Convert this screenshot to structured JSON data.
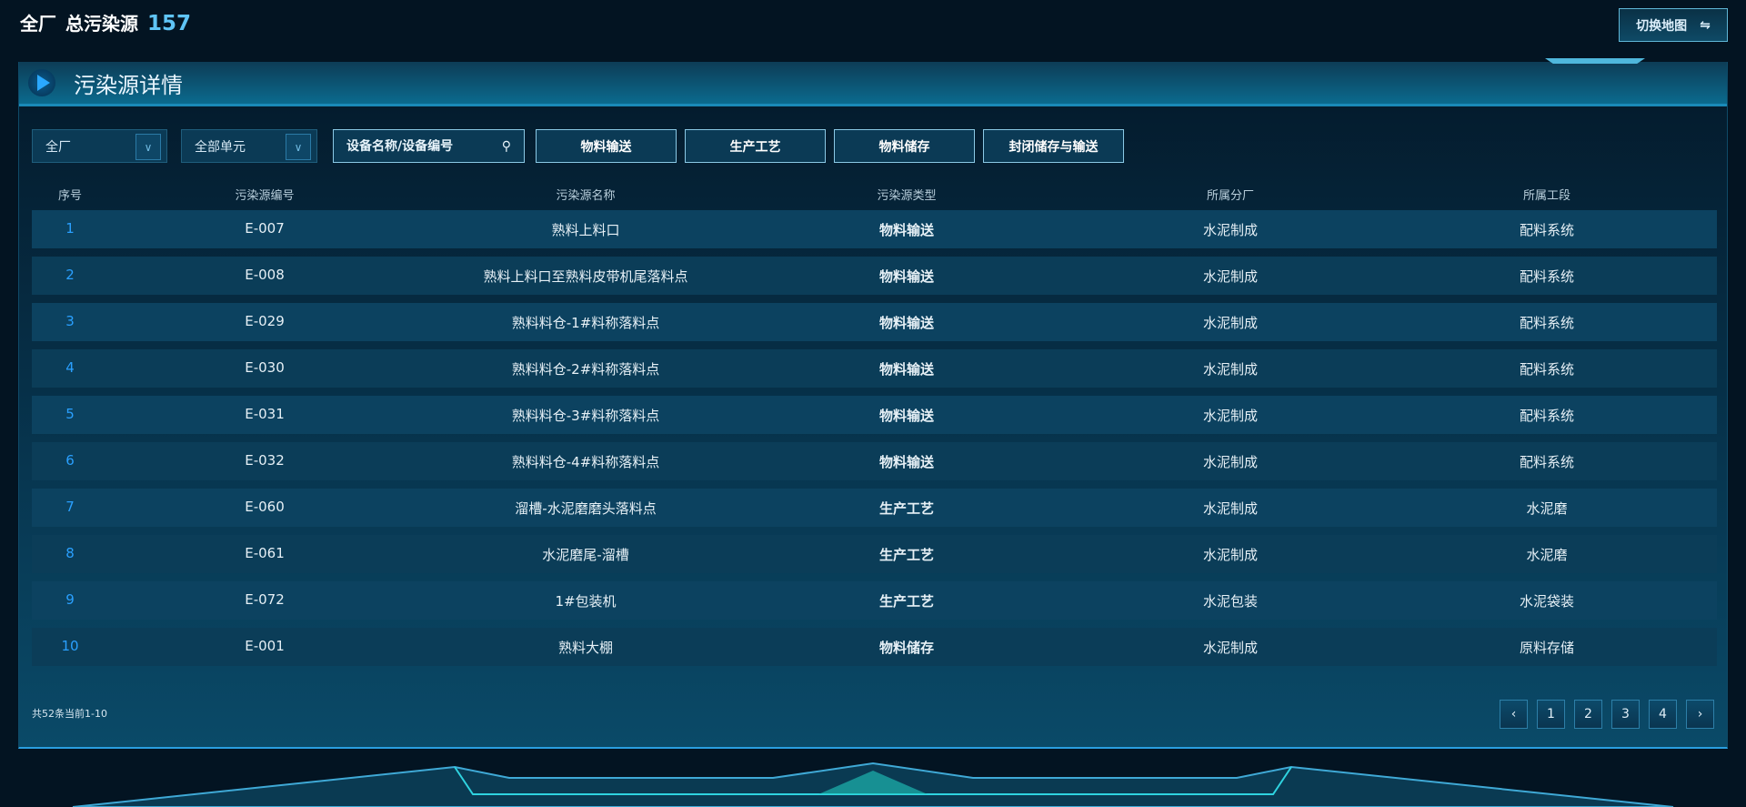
{
  "header": {
    "scope": "全厂",
    "label": "总污染源",
    "count": "157",
    "switch_label": "切换地图",
    "switch_icon": "swap-arrows-icon"
  },
  "panel": {
    "title": "污染源详情"
  },
  "filters": {
    "factory": "全厂",
    "unit": "全部单元",
    "search_placeholder": "设备名称/设备编号",
    "buttons": [
      "物料输送",
      "生产工艺",
      "物料储存",
      "封闭储存与输送"
    ]
  },
  "table": {
    "columns": [
      "序号",
      "污染源编号",
      "污染源名称",
      "污染源类型",
      "所属分厂",
      "所属工段"
    ],
    "rows": [
      [
        "1",
        "E-007",
        "熟料上料口",
        "物料输送",
        "水泥制成",
        "配料系统"
      ],
      [
        "2",
        "E-008",
        "熟料上料口至熟料皮带机尾落料点",
        "物料输送",
        "水泥制成",
        "配料系统"
      ],
      [
        "3",
        "E-029",
        "熟料料仓-1#料称落料点",
        "物料输送",
        "水泥制成",
        "配料系统"
      ],
      [
        "4",
        "E-030",
        "熟料料仓-2#料称落料点",
        "物料输送",
        "水泥制成",
        "配料系统"
      ],
      [
        "5",
        "E-031",
        "熟料料仓-3#料称落料点",
        "物料输送",
        "水泥制成",
        "配料系统"
      ],
      [
        "6",
        "E-032",
        "熟料料仓-4#料称落料点",
        "物料输送",
        "水泥制成",
        "配料系统"
      ],
      [
        "7",
        "E-060",
        "溜槽-水泥磨磨头落料点",
        "生产工艺",
        "水泥制成",
        "水泥磨"
      ],
      [
        "8",
        "E-061",
        "水泥磨尾-溜槽",
        "生产工艺",
        "水泥制成",
        "水泥磨"
      ],
      [
        "9",
        "E-072",
        "1#包装机",
        "生产工艺",
        "水泥包装",
        "水泥袋装"
      ],
      [
        "10",
        "E-001",
        "熟料大棚",
        "物料储存",
        "水泥制成",
        "原料存储"
      ]
    ]
  },
  "pagination": {
    "summary": "共52条当前1-10",
    "prev": "‹",
    "next": "›",
    "pages": [
      "1",
      "2",
      "3",
      "4"
    ],
    "current": "1"
  }
}
